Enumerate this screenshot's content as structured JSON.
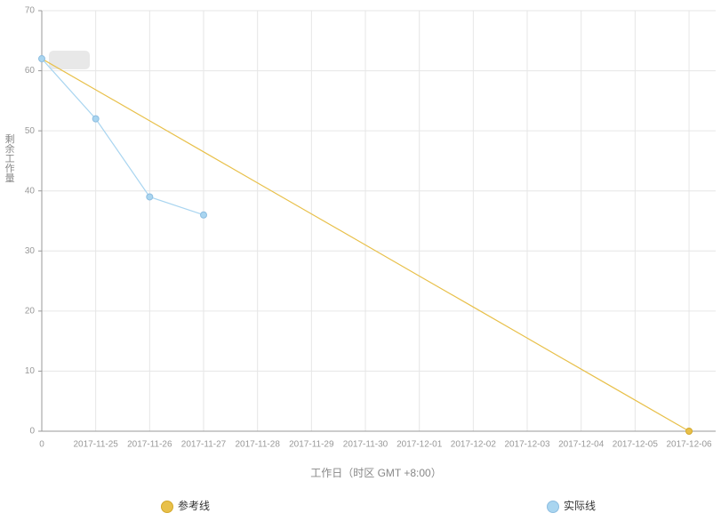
{
  "chart_data": {
    "type": "line",
    "y_label": "剩余工作量",
    "x_label": "工作日（时区 GMT +8:00）",
    "categories": [
      "0",
      "2017-11-25",
      "2017-11-26",
      "2017-11-27",
      "2017-11-28",
      "2017-11-29",
      "2017-11-30",
      "2017-12-01",
      "2017-12-02",
      "2017-12-03",
      "2017-12-04",
      "2017-12-05",
      "2017-12-06"
    ],
    "series": [
      {
        "name": "参考线",
        "color": "#e8c04a",
        "values": [
          62,
          56.83,
          51.67,
          46.5,
          41.33,
          36.17,
          31,
          25.83,
          20.67,
          15.5,
          10.33,
          5.17,
          0
        ]
      },
      {
        "name": "实际线",
        "color": "#a9d5f0",
        "values": [
          62,
          52,
          39,
          36,
          null,
          null,
          null,
          null,
          null,
          null,
          null,
          null,
          null
        ]
      }
    ],
    "ylim": [
      0,
      70
    ],
    "yticks": [
      0,
      10,
      20,
      30,
      40,
      50,
      60,
      70
    ],
    "grid": true
  }
}
